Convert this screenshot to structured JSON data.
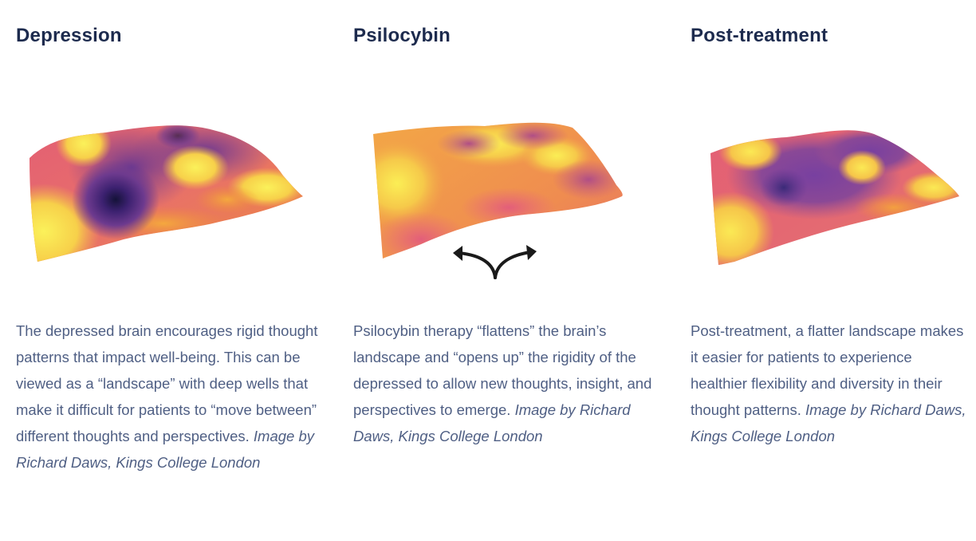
{
  "panels": [
    {
      "title": "Depression",
      "description": "The depressed brain encourages rigid thought patterns that impact well-being. This can be viewed as a “landscape” with deep wells that make it difficult for patients to “move between” different thoughts and perspectives.",
      "credit": "Image by Richard Daws, Kings College London",
      "illustration": "deep-wells-landscape"
    },
    {
      "title": "Psilocybin",
      "description": "Psilocybin therapy “flattens” the brain’s landscape and “opens up” the rigidity of the depressed to allow new thoughts, insight, and perspectives to emerge.",
      "credit": "Image by Richard Daws, Kings College London",
      "illustration": "flattened-landscape",
      "arrow_icon": "diverging-arrows-icon"
    },
    {
      "title": "Post-treatment",
      "description": "Post-treatment, a flatter landscape makes it easier for patients to experience healthier flexibility and diversity in their thought patterns.",
      "credit": "Image by Richard Daws, Kings College London",
      "illustration": "flatter-landscape"
    }
  ],
  "colors": {
    "title": "#1d2b4e",
    "text": "#4f5f84",
    "surface_high": "#f3e94a",
    "surface_mid": "#ee8a3c",
    "surface_low": "#e05b7a",
    "surface_well": "#5a2d82",
    "surface_deep": "#1d1a55"
  }
}
